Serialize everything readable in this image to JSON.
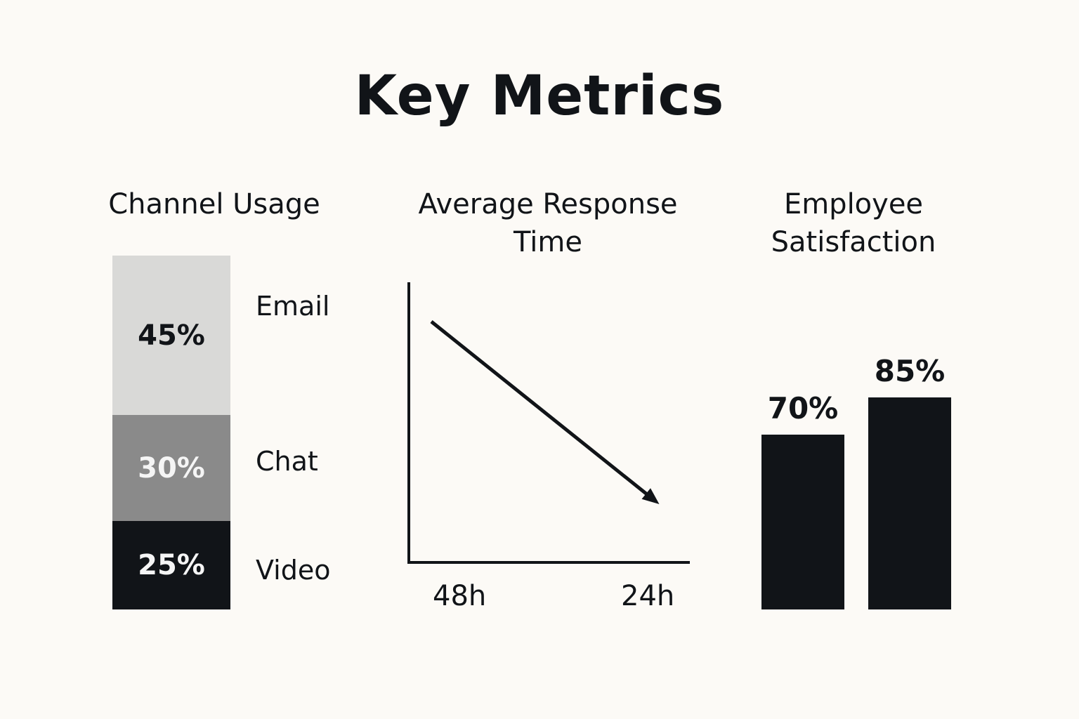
{
  "page": {
    "title": "Key Metrics"
  },
  "chart_data": [
    {
      "type": "bar",
      "stacked": true,
      "title": "Channel Usage",
      "categories": [
        "Email",
        "Chat",
        "Video"
      ],
      "values": [
        45,
        30,
        25
      ],
      "value_labels": [
        "45%",
        "30%",
        "25%"
      ],
      "colors": [
        "#d9d9d7",
        "#8a8a8a",
        "#111418"
      ],
      "text_colors": [
        "#111418",
        "#f5f5f5",
        "#f5f5f5"
      ],
      "unit": "%"
    },
    {
      "type": "line",
      "title": "Average Response Time",
      "tick_labels": [
        "48h",
        "24h"
      ],
      "y": [
        48,
        36,
        24
      ],
      "trend": "decreasing",
      "arrow_end": true,
      "grid": false
    },
    {
      "type": "bar",
      "title": "Employee Satisfaction",
      "values": [
        70,
        85
      ],
      "value_labels": [
        "70%",
        "85%"
      ],
      "ylim": [
        0,
        100
      ],
      "color": "#111418",
      "unit": "%"
    }
  ]
}
